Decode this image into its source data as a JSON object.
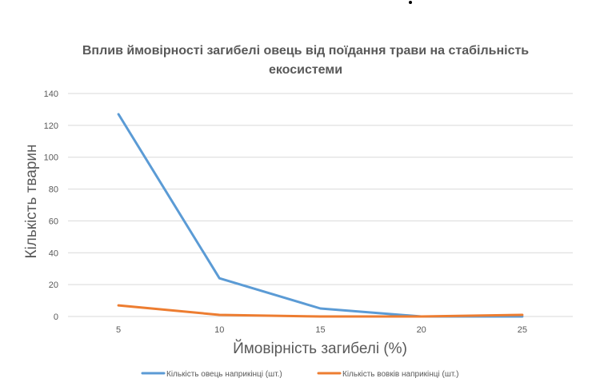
{
  "chart_data": {
    "type": "line",
    "title": "Вплив ймовірності загибелі овець від поїдання трави на стабільність екосистеми",
    "title_lines": [
      "Вплив ймовірності загибелі овець від поїдання трави на стабільність",
      "екосистеми"
    ],
    "xlabel": "Ймовірність загибелі (%)",
    "ylabel": "Кількість тварин",
    "categories": [
      "5",
      "10",
      "15",
      "20",
      "25"
    ],
    "x": [
      5,
      10,
      15,
      20,
      25
    ],
    "ylim": [
      0,
      140
    ],
    "yticks": [
      0,
      20,
      40,
      60,
      80,
      100,
      120,
      140
    ],
    "ytick_labels": [
      "0",
      "20",
      "40",
      "60",
      "80",
      "100",
      "120",
      "140"
    ],
    "grid": true,
    "legend_position": "bottom",
    "series": [
      {
        "name": "Кількість овець наприкінці (шт.)",
        "values": [
          127,
          24,
          5,
          0,
          0
        ],
        "color": "#5B9BD5"
      },
      {
        "name": "Кількість вовків наприкінці (шт.)",
        "values": [
          7,
          1,
          0,
          0,
          1
        ],
        "color": "#ED7D31"
      }
    ],
    "colors": {
      "grid": "#D9D9D9",
      "text": "#595959",
      "title": "#595959"
    }
  }
}
